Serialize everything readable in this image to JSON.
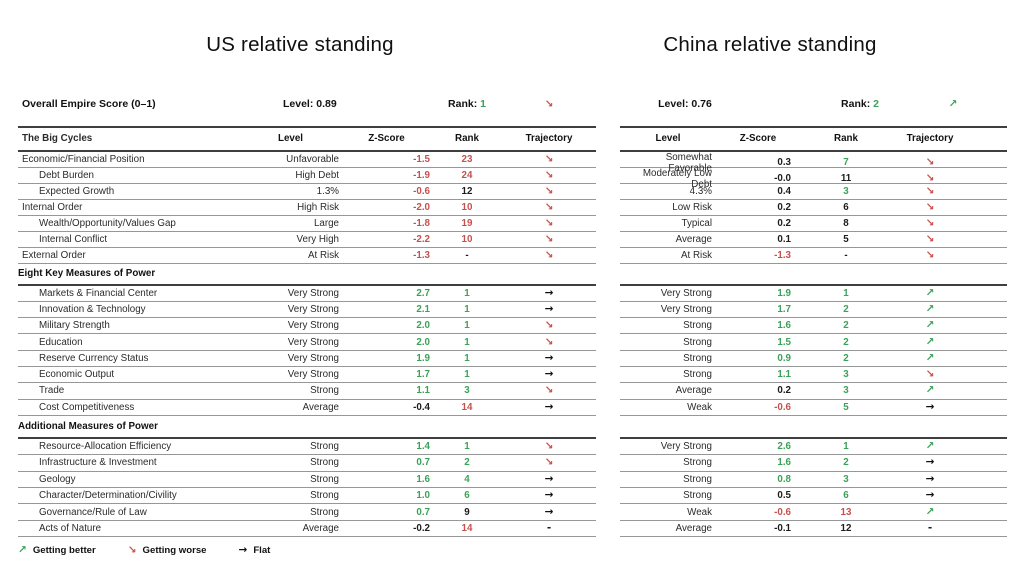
{
  "titles": {
    "us": "US relative standing",
    "china": "China relative standing"
  },
  "colors": {
    "green": "#3ba257",
    "red": "#c5514d",
    "black": "#1c1c1c"
  },
  "trend_glyphs": {
    "better": "↗",
    "worse": "↘",
    "flat": "→",
    "dash": "-"
  },
  "columns": {
    "name": "The Big Cycles",
    "level": "Level",
    "zscore": "Z-Score",
    "rank": "Rank",
    "trajectory": "Trajectory"
  },
  "sections": {
    "eight": "Eight Key Measures of Power",
    "additional": "Additional Measures of Power"
  },
  "legend": [
    {
      "trend": "better",
      "label": "Getting better"
    },
    {
      "trend": "worse",
      "label": "Getting worse"
    },
    {
      "trend": "flat",
      "label": "Flat"
    }
  ],
  "us": {
    "overall": {
      "label": "Overall Empire Score (0–1)",
      "level_label": "Level:",
      "level": "0.89",
      "rank_label": "Rank:",
      "rank": "1",
      "rank_color": "green",
      "trajectory": "worse"
    },
    "big_cycles": [
      {
        "name": "Economic/Financial Position",
        "indent": false,
        "level": "Unfavorable",
        "z": "-1.5",
        "z_color": "red",
        "rank": "23",
        "rank_color": "red",
        "traj": "worse"
      },
      {
        "name": "Debt Burden",
        "indent": true,
        "level": "High Debt",
        "z": "-1.9",
        "z_color": "red",
        "rank": "24",
        "rank_color": "red",
        "traj": "worse"
      },
      {
        "name": "Expected Growth",
        "indent": true,
        "level": "1.3%",
        "z": "-0.6",
        "z_color": "red",
        "rank": "12",
        "rank_color": "black",
        "traj": "worse"
      },
      {
        "name": "Internal Order",
        "indent": false,
        "level": "High Risk",
        "z": "-2.0",
        "z_color": "red",
        "rank": "10",
        "rank_color": "red",
        "traj": "worse"
      },
      {
        "name": "Wealth/Opportunity/Values Gap",
        "indent": true,
        "level": "Large",
        "z": "-1.8",
        "z_color": "red",
        "rank": "19",
        "rank_color": "red",
        "traj": "worse"
      },
      {
        "name": "Internal Conflict",
        "indent": true,
        "level": "Very High",
        "z": "-2.2",
        "z_color": "red",
        "rank": "10",
        "rank_color": "red",
        "traj": "worse"
      },
      {
        "name": "External Order",
        "indent": false,
        "level": "At Risk",
        "z": "-1.3",
        "z_color": "red",
        "rank": "-",
        "rank_color": "black",
        "traj": "worse"
      }
    ],
    "eight_key": [
      {
        "name": "Markets & Financial Center",
        "indent": true,
        "level": "Very Strong",
        "z": "2.7",
        "z_color": "green",
        "rank": "1",
        "rank_color": "green",
        "traj": "flat"
      },
      {
        "name": "Innovation & Technology",
        "indent": true,
        "level": "Very Strong",
        "z": "2.1",
        "z_color": "green",
        "rank": "1",
        "rank_color": "green",
        "traj": "flat"
      },
      {
        "name": "Military Strength",
        "indent": true,
        "level": "Very Strong",
        "z": "2.0",
        "z_color": "green",
        "rank": "1",
        "rank_color": "green",
        "traj": "worse"
      },
      {
        "name": "Education",
        "indent": true,
        "level": "Very Strong",
        "z": "2.0",
        "z_color": "green",
        "rank": "1",
        "rank_color": "green",
        "traj": "worse"
      },
      {
        "name": "Reserve Currency Status",
        "indent": true,
        "level": "Very Strong",
        "z": "1.9",
        "z_color": "green",
        "rank": "1",
        "rank_color": "green",
        "traj": "flat"
      },
      {
        "name": "Economic Output",
        "indent": true,
        "level": "Very Strong",
        "z": "1.7",
        "z_color": "green",
        "rank": "1",
        "rank_color": "green",
        "traj": "flat"
      },
      {
        "name": "Trade",
        "indent": true,
        "level": "Strong",
        "z": "1.1",
        "z_color": "green",
        "rank": "3",
        "rank_color": "green",
        "traj": "worse"
      },
      {
        "name": "Cost Competitiveness",
        "indent": true,
        "level": "Average",
        "z": "-0.4",
        "z_color": "black",
        "rank": "14",
        "rank_color": "red",
        "traj": "flat"
      }
    ],
    "additional": [
      {
        "name": "Resource-Allocation Efficiency",
        "indent": true,
        "level": "Strong",
        "z": "1.4",
        "z_color": "green",
        "rank": "1",
        "rank_color": "green",
        "traj": "worse"
      },
      {
        "name": "Infrastructure & Investment",
        "indent": true,
        "level": "Strong",
        "z": "0.7",
        "z_color": "green",
        "rank": "2",
        "rank_color": "green",
        "traj": "worse"
      },
      {
        "name": "Geology",
        "indent": true,
        "level": "Strong",
        "z": "1.6",
        "z_color": "green",
        "rank": "4",
        "rank_color": "green",
        "traj": "flat"
      },
      {
        "name": "Character/Determination/Civility",
        "indent": true,
        "level": "Strong",
        "z": "1.0",
        "z_color": "green",
        "rank": "6",
        "rank_color": "green",
        "traj": "flat"
      },
      {
        "name": "Governance/Rule of Law",
        "indent": true,
        "level": "Strong",
        "z": "0.7",
        "z_color": "green",
        "rank": "9",
        "rank_color": "black",
        "traj": "flat"
      },
      {
        "name": "Acts of Nature",
        "indent": true,
        "level": "Average",
        "z": "-0.2",
        "z_color": "black",
        "rank": "14",
        "rank_color": "red",
        "traj": "dash"
      }
    ]
  },
  "china": {
    "overall": {
      "level_label": "Level:",
      "level": "0.76",
      "rank_label": "Rank:",
      "rank": "2",
      "rank_color": "green",
      "trajectory": "better"
    },
    "big_cycles": [
      {
        "level": "Somewhat Favorable",
        "z": "0.3",
        "z_color": "black",
        "rank": "7",
        "rank_color": "green",
        "traj": "worse"
      },
      {
        "level": "Moderately Low Debt",
        "z": "-0.0",
        "z_color": "black",
        "rank": "11",
        "rank_color": "black",
        "traj": "worse"
      },
      {
        "level": "4.3%",
        "z": "0.4",
        "z_color": "black",
        "rank": "3",
        "rank_color": "green",
        "traj": "worse"
      },
      {
        "level": "Low Risk",
        "z": "0.2",
        "z_color": "black",
        "rank": "6",
        "rank_color": "black",
        "traj": "worse"
      },
      {
        "level": "Typical",
        "z": "0.2",
        "z_color": "black",
        "rank": "8",
        "rank_color": "black",
        "traj": "worse"
      },
      {
        "level": "Average",
        "z": "0.1",
        "z_color": "black",
        "rank": "5",
        "rank_color": "black",
        "traj": "worse"
      },
      {
        "level": "At Risk",
        "z": "-1.3",
        "z_color": "red",
        "rank": "-",
        "rank_color": "black",
        "traj": "worse"
      }
    ],
    "eight_key": [
      {
        "level": "Very Strong",
        "z": "1.9",
        "z_color": "green",
        "rank": "1",
        "rank_color": "green",
        "traj": "better"
      },
      {
        "level": "Very Strong",
        "z": "1.7",
        "z_color": "green",
        "rank": "2",
        "rank_color": "green",
        "traj": "better"
      },
      {
        "level": "Strong",
        "z": "1.6",
        "z_color": "green",
        "rank": "2",
        "rank_color": "green",
        "traj": "better"
      },
      {
        "level": "Strong",
        "z": "1.5",
        "z_color": "green",
        "rank": "2",
        "rank_color": "green",
        "traj": "better"
      },
      {
        "level": "Strong",
        "z": "0.9",
        "z_color": "green",
        "rank": "2",
        "rank_color": "green",
        "traj": "better"
      },
      {
        "level": "Strong",
        "z": "1.1",
        "z_color": "green",
        "rank": "3",
        "rank_color": "green",
        "traj": "worse"
      },
      {
        "level": "Average",
        "z": "0.2",
        "z_color": "black",
        "rank": "3",
        "rank_color": "green",
        "traj": "better"
      },
      {
        "level": "Weak",
        "z": "-0.6",
        "z_color": "red",
        "rank": "5",
        "rank_color": "green",
        "traj": "flat"
      }
    ],
    "additional": [
      {
        "level": "Very Strong",
        "z": "2.6",
        "z_color": "green",
        "rank": "1",
        "rank_color": "green",
        "traj": "better"
      },
      {
        "level": "Strong",
        "z": "1.6",
        "z_color": "green",
        "rank": "2",
        "rank_color": "green",
        "traj": "flat"
      },
      {
        "level": "Strong",
        "z": "0.8",
        "z_color": "green",
        "rank": "3",
        "rank_color": "green",
        "traj": "flat"
      },
      {
        "level": "Strong",
        "z": "0.5",
        "z_color": "black",
        "rank": "6",
        "rank_color": "green",
        "traj": "flat"
      },
      {
        "level": "Weak",
        "z": "-0.6",
        "z_color": "red",
        "rank": "13",
        "rank_color": "red",
        "traj": "better"
      },
      {
        "level": "Average",
        "z": "-0.1",
        "z_color": "black",
        "rank": "12",
        "rank_color": "black",
        "traj": "dash"
      }
    ]
  }
}
